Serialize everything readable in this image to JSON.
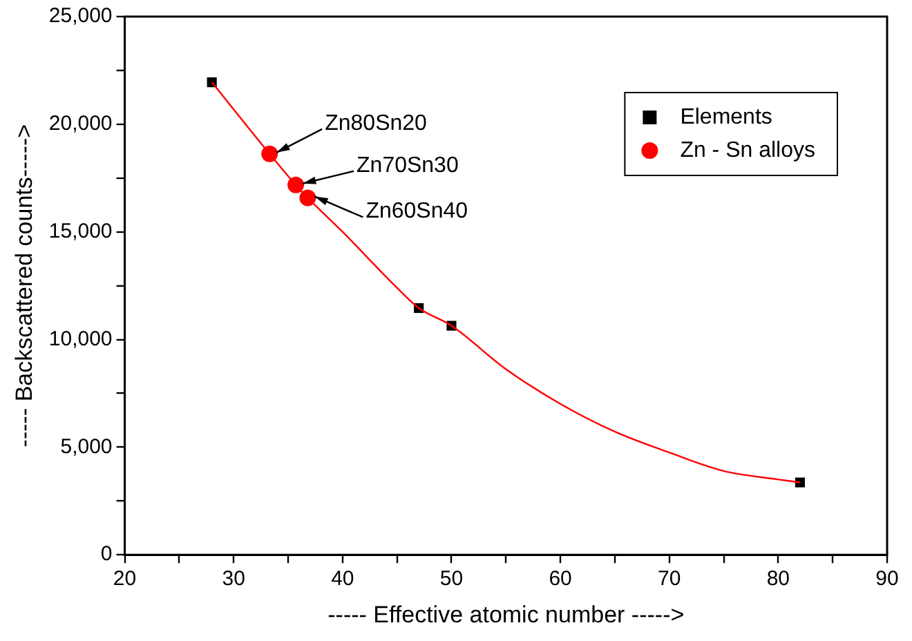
{
  "chart_data": {
    "type": "scatter",
    "xlabel": "----- Effective atomic number ----->",
    "ylabel": "----- Backscattered counts----->",
    "xlim": [
      20,
      90
    ],
    "ylim": [
      0,
      25000
    ],
    "xticks": [
      20,
      {
        "value": 25,
        "label": null
      },
      30,
      {
        "value": 35,
        "label": null
      },
      40,
      {
        "value": 45,
        "label": null
      },
      50,
      {
        "value": 55,
        "label": null
      },
      60,
      {
        "value": 65,
        "label": null
      },
      70,
      {
        "value": 75,
        "label": null
      },
      80,
      {
        "value": 85,
        "label": null
      },
      90
    ],
    "yticks": [
      {
        "value": 0,
        "label": "0"
      },
      {
        "value": 2500,
        "label": null
      },
      {
        "value": 5000,
        "label": "5,000"
      },
      {
        "value": 7500,
        "label": null
      },
      {
        "value": 10000,
        "label": "10,000"
      },
      {
        "value": 12500,
        "label": null
      },
      {
        "value": 15000,
        "label": "15,000"
      },
      {
        "value": 17500,
        "label": null
      },
      {
        "value": 20000,
        "label": "20,000"
      },
      {
        "value": 22500,
        "label": null
      },
      {
        "value": 25000,
        "label": "25,000"
      }
    ],
    "grid": false,
    "legend": "top right",
    "series": [
      {
        "type": "line",
        "color": "#ff0000",
        "marker": "none",
        "x": [
          28,
          33.3,
          35.7,
          36.8,
          40,
          45,
          47,
          50,
          55,
          60,
          65,
          70,
          75,
          80,
          82
        ],
        "values": [
          21950,
          18620,
          17180,
          16580,
          15000,
          12400,
          11460,
          10640,
          8620,
          7010,
          5720,
          4750,
          3890,
          3500,
          3360
        ]
      },
      {
        "name": "Elements",
        "color": "#000000",
        "marker": "square",
        "x": [
          28,
          47,
          50,
          82
        ],
        "values": [
          21950,
          11460,
          10640,
          3360
        ]
      },
      {
        "name": "Zn - Sn alloys",
        "color": "#ff0000",
        "marker": "circle",
        "x": [
          33.3,
          35.7,
          36.8
        ],
        "values": [
          18620,
          17180,
          16580
        ]
      }
    ],
    "annotations": [
      {
        "text": "Zn80Sn20",
        "x": 33.3,
        "y": 18620
      },
      {
        "text": "Zn70Sn30",
        "x": 35.7,
        "y": 17180
      },
      {
        "text": "Zn60Sn40",
        "x": 36.8,
        "y": 16580
      }
    ]
  }
}
